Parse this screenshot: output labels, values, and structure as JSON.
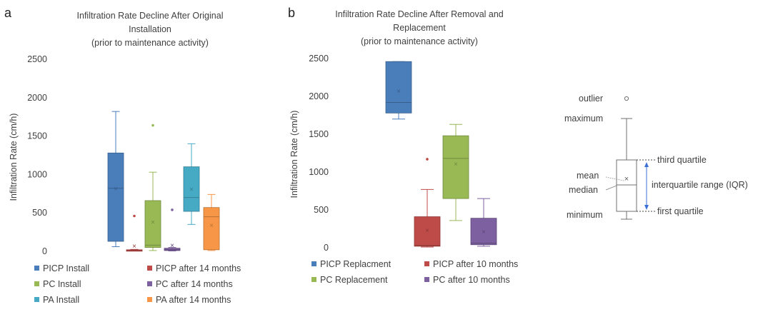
{
  "panels": {
    "a": {
      "letter": "a",
      "title": [
        "Infiltration Rate Decline After Original",
        "Installation",
        "(prior to maintenance activity)"
      ],
      "ylabel": "Infiltration Rate (cm/h)"
    },
    "b": {
      "letter": "b",
      "title": [
        "Infiltration Rate Decline After Removal and",
        "Replacement",
        "(prior to maintenance activity)"
      ],
      "ylabel": "Infiltration Rate (cm/h)"
    }
  },
  "key": {
    "outlier": "outlier",
    "maximum": "maximum",
    "third_quartile": "third quartile",
    "mean": "mean",
    "median": "median",
    "iqr": "interquartile range (IQR)",
    "minimum": "minimum",
    "first_quartile": "first quartile"
  },
  "chart_data": [
    {
      "panel": "a",
      "type": "box",
      "ylim": [
        0,
        2500
      ],
      "yticks": [
        0,
        500,
        1000,
        1500,
        2000,
        2500
      ],
      "grid": false,
      "legend_position": "bottom",
      "series": [
        {
          "name": "PICP Install",
          "color": "#4a7ebb",
          "min": 60,
          "q1": 130,
          "median": 820,
          "q3": 1280,
          "max": 1820,
          "mean": 820,
          "outliers": []
        },
        {
          "name": "PICP after 14 months",
          "color": "#be4b48",
          "min": 5,
          "q1": 5,
          "median": 15,
          "q3": 20,
          "max": 25,
          "mean": 70,
          "outliers": [
            460
          ]
        },
        {
          "name": "PC Install",
          "color": "#98b954",
          "min": 10,
          "q1": 50,
          "median": 80,
          "q3": 660,
          "max": 1030,
          "mean": 380,
          "outliers": [
            1640
          ]
        },
        {
          "name": "PC after 14 months",
          "color": "#7d60a0",
          "min": 5,
          "q1": 10,
          "median": 20,
          "q3": 40,
          "max": 50,
          "mean": 80,
          "outliers": [
            540
          ]
        },
        {
          "name": "PA Install",
          "color": "#46aac5",
          "min": 350,
          "q1": 520,
          "median": 700,
          "q3": 1100,
          "max": 1400,
          "mean": 810,
          "outliers": []
        },
        {
          "name": "PA after 14 months",
          "color": "#f79646",
          "min": 10,
          "q1": 20,
          "median": 450,
          "q3": 570,
          "max": 740,
          "mean": 340,
          "outliers": []
        }
      ]
    },
    {
      "panel": "b",
      "type": "box",
      "ylim": [
        0,
        2500
      ],
      "yticks": [
        0,
        500,
        1000,
        1500,
        2000,
        2500
      ],
      "grid": false,
      "legend_position": "bottom",
      "series": [
        {
          "name": "PICP Replacment",
          "color": "#4a7ebb",
          "min": 1700,
          "q1": 1780,
          "median": 1920,
          "q3": 2460,
          "max": 2460,
          "mean": 2070,
          "outliers": []
        },
        {
          "name": "PICP after 10 months",
          "color": "#be4b48",
          "min": 10,
          "q1": 20,
          "median": 30,
          "q3": 410,
          "max": 770,
          "mean": 230,
          "outliers": [
            1170
          ]
        },
        {
          "name": "PC Replacement",
          "color": "#98b954",
          "min": 360,
          "q1": 650,
          "median": 1180,
          "q3": 1480,
          "max": 1630,
          "mean": 1110,
          "outliers": []
        },
        {
          "name": "PC after 10 months",
          "color": "#7d60a0",
          "min": 20,
          "q1": 40,
          "median": 60,
          "q3": 390,
          "max": 650,
          "mean": 210,
          "outliers": []
        }
      ]
    }
  ]
}
